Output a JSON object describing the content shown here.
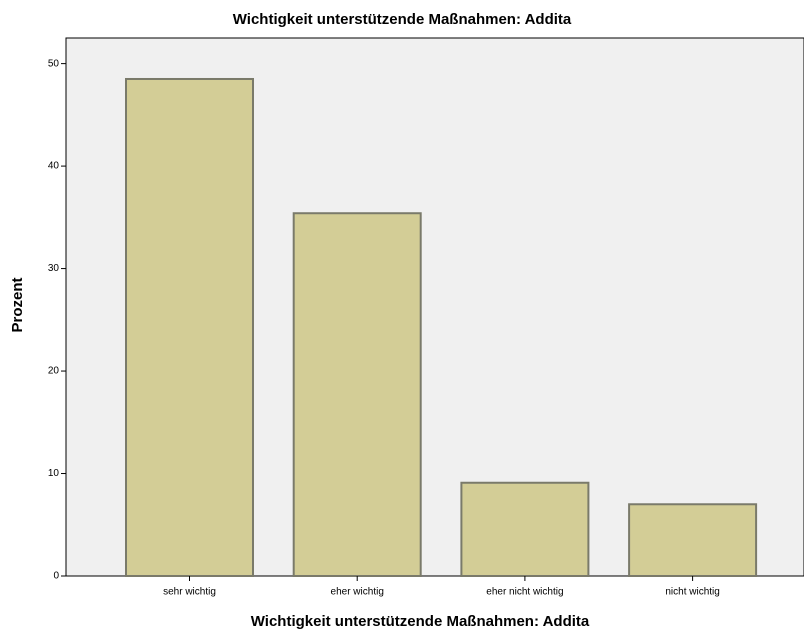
{
  "chart_data": {
    "type": "bar",
    "title": "Wichtigkeit unterstützende Maßnahmen: Addita",
    "x_label": "Wichtigkeit unterstützende Maßnahmen: Addita",
    "y_label": "Prozent",
    "categories": [
      "sehr wichtig",
      "eher wichtig",
      "eher nicht wichtig",
      "nicht wichtig"
    ],
    "values": [
      48.5,
      35.4,
      9.1,
      7.0
    ],
    "color": "#d3cd96",
    "ylim": [
      0,
      52.5
    ],
    "yticks": [
      0,
      10,
      20,
      30,
      40,
      50
    ]
  }
}
